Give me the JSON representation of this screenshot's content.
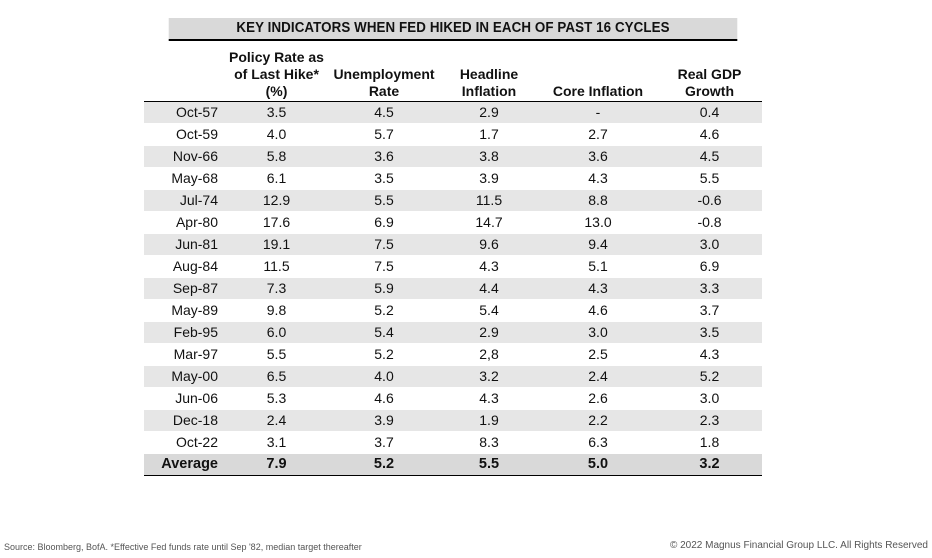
{
  "chart_data": {
    "type": "table",
    "title": "KEY INDICATORS WHEN FED HIKED IN EACH OF PAST 16 CYCLES",
    "columns": [
      "",
      "Policy Rate as of Last Hike* (%)",
      "Unemployment Rate",
      "Headline Inflation",
      "Core Inflation",
      "Real GDP Growth"
    ],
    "column_lines": [
      [],
      [
        "Policy Rate as",
        "of Last Hike*",
        "(%)"
      ],
      [
        "Unemployment",
        "Rate"
      ],
      [
        "Headline",
        "Inflation"
      ],
      [
        "Core Inflation"
      ],
      [
        "Real GDP",
        "Growth"
      ]
    ],
    "rows": [
      [
        "Oct-57",
        "3.5",
        "4.5",
        "2.9",
        "-",
        "0.4"
      ],
      [
        "Oct-59",
        "4.0",
        "5.7",
        "1.7",
        "2.7",
        "4.6"
      ],
      [
        "Nov-66",
        "5.8",
        "3.6",
        "3.8",
        "3.6",
        "4.5"
      ],
      [
        "May-68",
        "6.1",
        "3.5",
        "3.9",
        "4.3",
        "5.5"
      ],
      [
        "Jul-74",
        "12.9",
        "5.5",
        "11.5",
        "8.8",
        "-0.6"
      ],
      [
        "Apr-80",
        "17.6",
        "6.9",
        "14.7",
        "13.0",
        "-0.8"
      ],
      [
        "Jun-81",
        "19.1",
        "7.5",
        "9.6",
        "9.4",
        "3.0"
      ],
      [
        "Aug-84",
        "11.5",
        "7.5",
        "4.3",
        "5.1",
        "6.9"
      ],
      [
        "Sep-87",
        "7.3",
        "5.9",
        "4.4",
        "4.3",
        "3.3"
      ],
      [
        "May-89",
        "9.8",
        "5.2",
        "5.4",
        "4.6",
        "3.7"
      ],
      [
        "Feb-95",
        "6.0",
        "5.4",
        "2.9",
        "3.0",
        "3.5"
      ],
      [
        "Mar-97",
        "5.5",
        "5.2",
        "2,8",
        "2.5",
        "4.3"
      ],
      [
        "May-00",
        "6.5",
        "4.0",
        "3.2",
        "2.4",
        "5.2"
      ],
      [
        "Jun-06",
        "5.3",
        "4.6",
        "4.3",
        "2.6",
        "3.0"
      ],
      [
        "Dec-18",
        "2.4",
        "3.9",
        "1.9",
        "2.2",
        "2.3"
      ],
      [
        "Oct-22",
        "3.1",
        "3.7",
        "8.3",
        "6.3",
        "1.8"
      ]
    ],
    "average": [
      "Average",
      "7.9",
      "5.2",
      "5.5",
      "5.0",
      "3.2"
    ]
  },
  "footer": {
    "source": "Source: Bloomberg, BofA.  *Effective Fed funds rate until Sep '82, median target thereafter",
    "copyright": "© 2022 Magnus Financial Group LLC. All Rights Reserved"
  },
  "colors": {
    "band": "#e6e6e6",
    "header_fill": "#d9d9d9",
    "rule": "#000000"
  }
}
